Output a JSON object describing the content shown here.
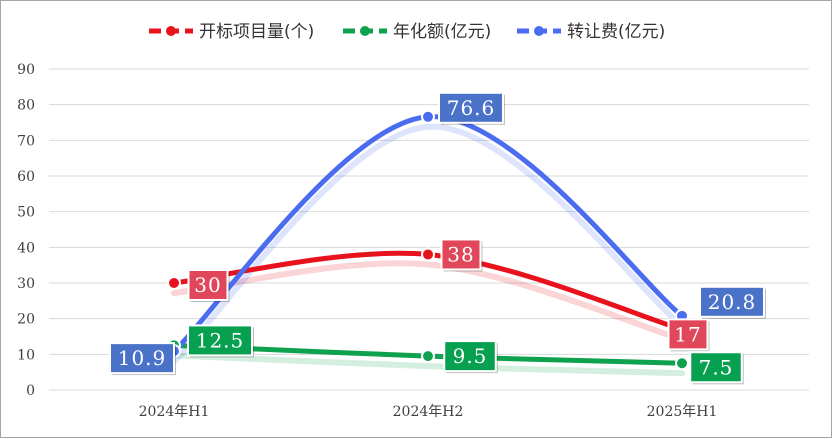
{
  "chart_data": {
    "type": "line",
    "categories": [
      "2024年H1",
      "2024年H2",
      "2025年H1"
    ],
    "ylim": [
      0,
      90
    ],
    "yticks": [
      0,
      10,
      20,
      30,
      40,
      50,
      60,
      70,
      80,
      90
    ],
    "grid": true,
    "legend_position": "top",
    "series": [
      {
        "name": "开标项目量(个)",
        "values": [
          30,
          38,
          17
        ],
        "labels": [
          "30",
          "38",
          "17"
        ],
        "color": "#e8121d",
        "label_bg": "#e0475a"
      },
      {
        "name": "年化额(亿元)",
        "values": [
          12.5,
          9.5,
          7.5
        ],
        "labels": [
          "12.5",
          "9.5",
          "7.5"
        ],
        "color": "#0ea24f",
        "label_bg": "#06a050"
      },
      {
        "name": "转让费(亿元)",
        "values": [
          10.9,
          76.6,
          20.8
        ],
        "labels": [
          "10.9",
          "76.6",
          "20.8"
        ],
        "color": "#4a6cf0",
        "label_bg": "#4a72c8"
      }
    ]
  }
}
